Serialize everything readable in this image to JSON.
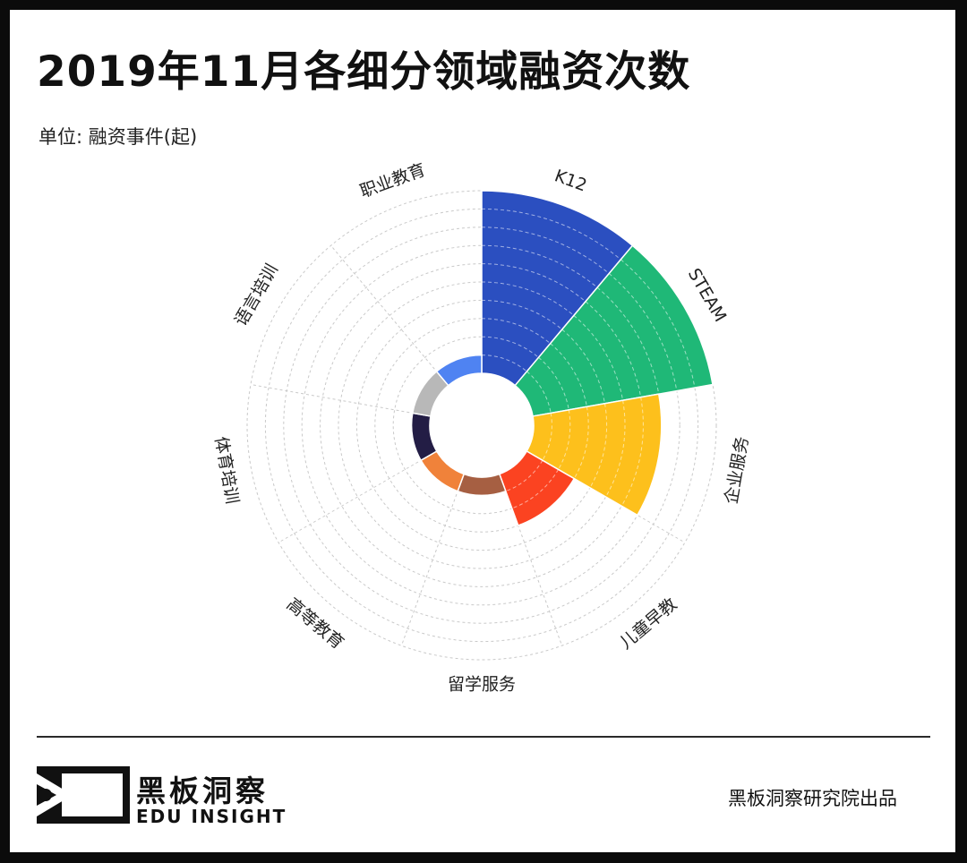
{
  "header": {
    "title": "2019年11月各细分领域融资次数",
    "unit": "单位: 融资事件(起)"
  },
  "chart_data": {
    "type": "polar_bar",
    "categories": [
      "K12",
      "STEAM",
      "企业服务",
      "儿童早教",
      "留学服务",
      "高等教育",
      "体育培训",
      "语言培训",
      "职业教育"
    ],
    "values": [
      10,
      10,
      7,
      3,
      1,
      1,
      1,
      1,
      1
    ],
    "colors": [
      "#2b4fc0",
      "#1fb877",
      "#fdc01c",
      "#fb4321",
      "#a65f42",
      "#f0823a",
      "#231d45",
      "#b8b8b8",
      "#4f83f2"
    ],
    "rlim": [
      0,
      10
    ],
    "grid": true
  },
  "footer": {
    "brand_cn": "黑板洞察",
    "brand_en": "EDU INSIGHT",
    "credit": "黑板洞察研究院出品"
  }
}
